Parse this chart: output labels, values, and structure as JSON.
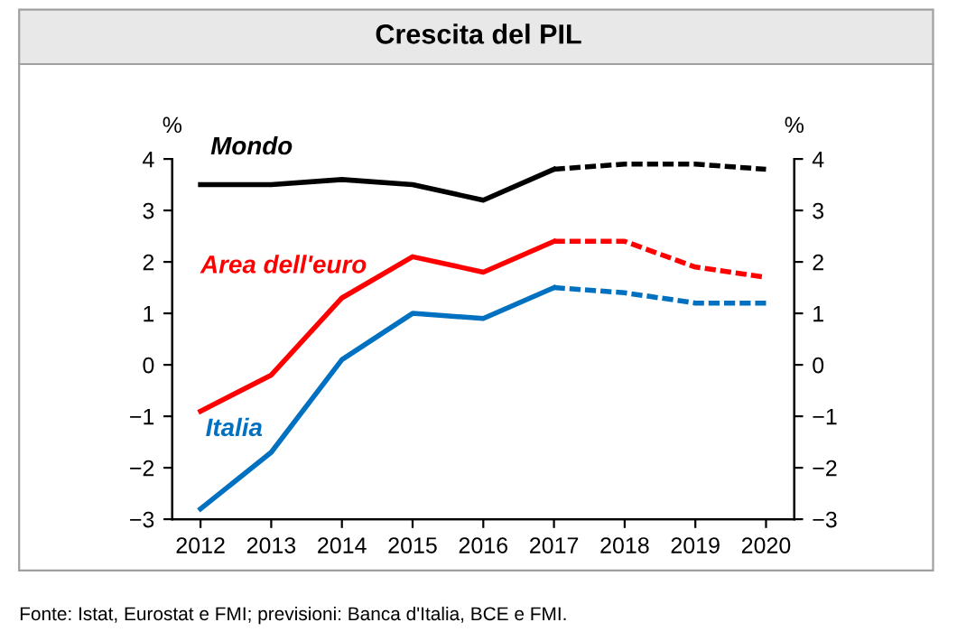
{
  "chart_data": {
    "type": "line",
    "title": "Crescita del PIL",
    "categories": [
      "2012",
      "2013",
      "2014",
      "2015",
      "2016",
      "2017",
      "2018",
      "2019",
      "2020"
    ],
    "series": [
      {
        "name": "Mondo",
        "color": "#000000",
        "values": [
          3.5,
          3.5,
          3.6,
          3.5,
          3.2,
          3.8,
          null,
          null,
          null
        ]
      },
      {
        "color": "#000000",
        "line_style": "dashed",
        "values": [
          null,
          null,
          null,
          null,
          null,
          3.8,
          3.9,
          3.9,
          3.8
        ]
      },
      {
        "name": "Area dell'euro",
        "color": "#ff0000",
        "values": [
          -0.9,
          -0.2,
          1.3,
          2.1,
          1.8,
          2.4,
          null,
          null,
          null
        ]
      },
      {
        "color": "#ff0000",
        "line_style": "dashed",
        "values": [
          null,
          null,
          null,
          null,
          null,
          2.4,
          2.4,
          1.9,
          1.7
        ]
      },
      {
        "name": "Italia",
        "color": "#0070c0",
        "values": [
          -2.8,
          -1.7,
          0.1,
          1.0,
          0.9,
          1.5,
          null,
          null,
          null
        ]
      },
      {
        "color": "#0070c0",
        "line_style": "dashed",
        "values": [
          null,
          null,
          null,
          null,
          null,
          1.5,
          1.4,
          1.2,
          1.2
        ]
      }
    ],
    "ylabel": "%",
    "y2label": "%",
    "ylim": [
      -3,
      4
    ],
    "yticks": [
      -3,
      -2,
      -1,
      0,
      1,
      2,
      3,
      4
    ],
    "y2lim": [
      -3,
      4
    ],
    "y2ticks": [
      -3,
      -2,
      -1,
      0,
      1,
      2,
      3,
      4
    ],
    "line_style": "solid",
    "grid": false,
    "legend": false,
    "annotations": [
      "Fonte: Istat, Eurostat e FMI; previsioni: Banca d'Italia, BCE e FMI."
    ]
  }
}
